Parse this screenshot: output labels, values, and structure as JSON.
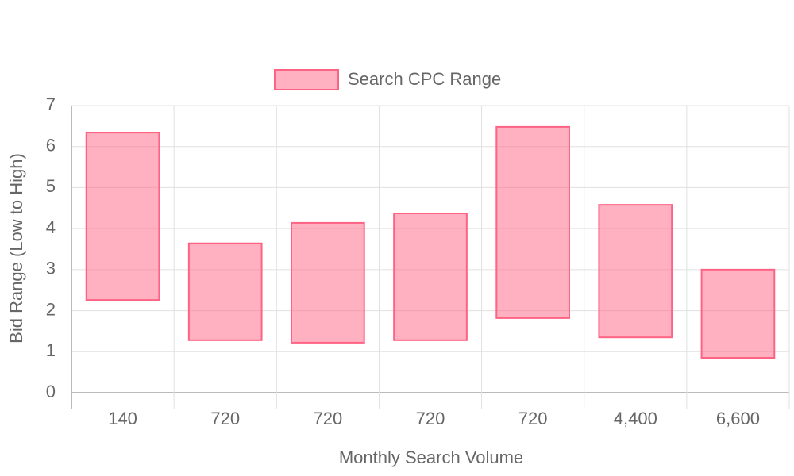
{
  "chart_data": {
    "type": "floating-bar",
    "x_label": "Monthly Search Volume",
    "y_label": "Bid Range (Low to High)",
    "categories": [
      "140",
      "720",
      "720",
      "720",
      "720",
      "4,400",
      "6,600"
    ],
    "series": [
      {
        "name": "Search CPC Range",
        "color": "#ff6384",
        "values": [
          [
            2.26,
            6.34
          ],
          [
            1.28,
            3.64
          ],
          [
            1.22,
            4.14
          ],
          [
            1.28,
            4.37
          ],
          [
            1.82,
            6.48
          ],
          [
            1.35,
            4.58
          ],
          [
            0.85,
            3.0
          ]
        ]
      }
    ],
    "ylim": [
      0,
      7
    ],
    "yticks": [
      0,
      1,
      2,
      3,
      4,
      5,
      6,
      7
    ],
    "grid": true,
    "legend": "top"
  }
}
